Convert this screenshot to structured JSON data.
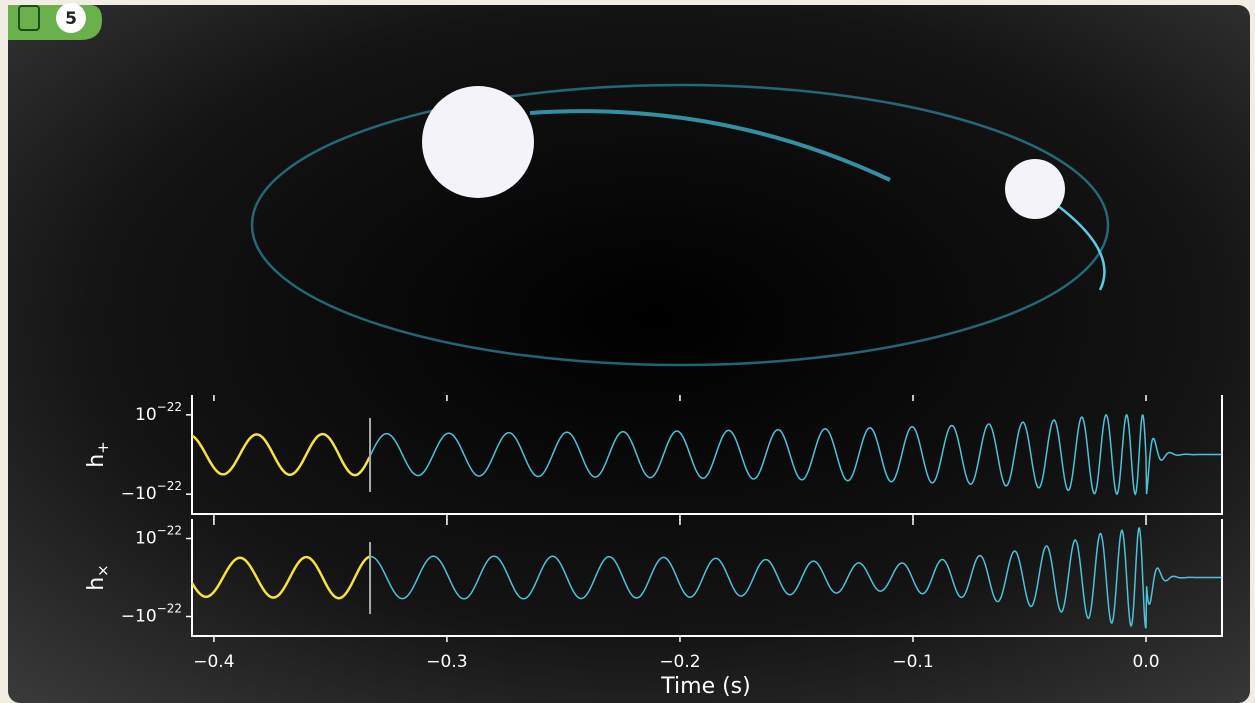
{
  "badge": {
    "number": "5"
  },
  "xaxis": {
    "label": "Time (s)",
    "xlim": [
      -0.4094,
      0.0326
    ],
    "ticks": [
      {
        "value": -0.4,
        "label": "−0.4"
      },
      {
        "value": -0.3,
        "label": "−0.3"
      },
      {
        "value": -0.2,
        "label": "−0.2"
      },
      {
        "value": -0.1,
        "label": "−0.1"
      },
      {
        "value": 0,
        "label": "0.0"
      }
    ]
  },
  "plots": [
    {
      "ylabel": {
        "base": "h",
        "sub": "+"
      },
      "ylim": [
        -1.5e-22,
        1.5e-22
      ],
      "yticks": [
        {
          "value": 1e-22,
          "base": "10",
          "exp": "−22"
        },
        {
          "value": -1e-22,
          "base": "−10",
          "exp": "−22"
        }
      ]
    },
    {
      "ylabel": {
        "base": "h",
        "sub": "×"
      },
      "ylim": [
        -1.5e-22,
        1.5e-22
      ],
      "yticks": [
        {
          "value": 1e-22,
          "base": "10",
          "exp": "−22"
        },
        {
          "value": -1e-22,
          "base": "−10",
          "exp": "−22"
        }
      ]
    }
  ]
}
